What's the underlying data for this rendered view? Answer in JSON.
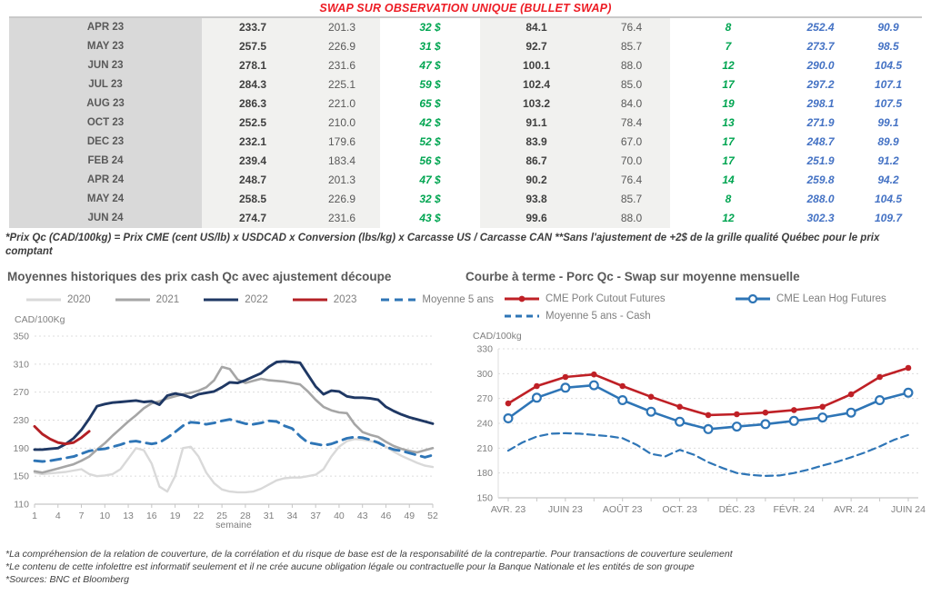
{
  "title": "SWAP SUR OBSERVATION UNIQUE (BULLET SWAP)",
  "table": {
    "rows": [
      [
        "APR 23",
        "233.7",
        "201.3",
        "32 $",
        "84.1",
        "76.4",
        "8",
        "252.4",
        "90.9"
      ],
      [
        "MAY 23",
        "257.5",
        "226.9",
        "31 $",
        "92.7",
        "85.7",
        "7",
        "273.7",
        "98.5"
      ],
      [
        "JUN 23",
        "278.1",
        "231.6",
        "47 $",
        "100.1",
        "88.0",
        "12",
        "290.0",
        "104.5"
      ],
      [
        "JUL 23",
        "284.3",
        "225.1",
        "59 $",
        "102.4",
        "85.0",
        "17",
        "297.2",
        "107.1"
      ],
      [
        "AUG 23",
        "286.3",
        "221.0",
        "65 $",
        "103.2",
        "84.0",
        "19",
        "298.1",
        "107.5"
      ],
      [
        "OCT 23",
        "252.5",
        "210.0",
        "42 $",
        "91.1",
        "78.4",
        "13",
        "271.9",
        "99.1"
      ],
      [
        "DEC 23",
        "232.1",
        "179.6",
        "52 $",
        "83.9",
        "67.0",
        "17",
        "248.7",
        "89.9"
      ],
      [
        "FEB 24",
        "239.4",
        "183.4",
        "56 $",
        "86.7",
        "70.0",
        "17",
        "251.9",
        "91.2"
      ],
      [
        "APR 24",
        "248.7",
        "201.3",
        "47 $",
        "90.2",
        "76.4",
        "14",
        "259.8",
        "94.2"
      ],
      [
        "MAY 24",
        "258.5",
        "226.9",
        "32 $",
        "93.8",
        "85.7",
        "8",
        "288.0",
        "104.5"
      ],
      [
        "JUN 24",
        "274.7",
        "231.6",
        "43 $",
        "99.6",
        "88.0",
        "12",
        "302.3",
        "109.7"
      ]
    ],
    "footnote": "*Prix Qc (CAD/100kg) = Prix CME (cent US/lb) x USDCAD x Conversion (lbs/kg) x Carcasse US / Carcasse CAN **Sans l'ajustement de +2$ de la grille qualité Québec pour le prix comptant"
  },
  "chart_data": [
    {
      "type": "line",
      "title": "Moyennes historiques des prix cash Qc avec ajustement découpe",
      "ylabel": "CAD/100Kg",
      "xlabel": "semaine",
      "ylim": [
        110,
        350
      ],
      "yticks": [
        110,
        150,
        190,
        230,
        270,
        310,
        350
      ],
      "xlim": [
        1,
        52
      ],
      "xticks": [
        {
          "v": 1,
          "label": "1"
        },
        {
          "v": 4,
          "label": "4"
        },
        {
          "v": 7,
          "label": "7"
        },
        {
          "v": 10,
          "label": "10"
        },
        {
          "v": 13,
          "label": "13"
        },
        {
          "v": 16,
          "label": "16"
        },
        {
          "v": 19,
          "label": "19"
        },
        {
          "v": 22,
          "label": "22"
        },
        {
          "v": 25,
          "label": "25"
        },
        {
          "v": 28,
          "label": "28"
        },
        {
          "v": 31,
          "label": "31"
        },
        {
          "v": 34,
          "label": "34"
        },
        {
          "v": 37,
          "label": "37"
        },
        {
          "v": 40,
          "label": "40"
        },
        {
          "v": 43,
          "label": "43"
        },
        {
          "v": 46,
          "label": "46"
        },
        {
          "v": 49,
          "label": "49"
        },
        {
          "v": 52,
          "label": "52"
        }
      ],
      "legend": [
        {
          "label": "2020",
          "color": "#d9d9d9"
        },
        {
          "label": "2021",
          "color": "#a6a6a6"
        },
        {
          "label": "2022",
          "color": "#1f3864"
        },
        {
          "label": "2023",
          "color": "#b42025"
        },
        {
          "label": "Moyenne 5 ans",
          "color": "#2e75b6",
          "dash": "9 6"
        }
      ],
      "series": [
        {
          "name": "2020",
          "color": "#d9d9d9",
          "width": 2.4,
          "x0": 1,
          "dx": 1,
          "values": [
            155,
            153,
            154,
            155,
            156,
            158,
            160,
            153,
            150,
            151,
            153,
            160,
            175,
            190,
            187,
            168,
            135,
            128,
            150,
            190,
            192,
            178,
            155,
            140,
            131,
            128,
            127,
            127,
            128,
            132,
            138,
            144,
            147,
            148,
            148,
            150,
            152,
            160,
            178,
            192,
            200,
            203,
            202,
            200,
            197,
            192,
            185,
            179,
            174,
            169,
            165,
            163
          ]
        },
        {
          "name": "2021",
          "color": "#a6a6a6",
          "width": 2.6,
          "x0": 1,
          "dx": 1,
          "values": [
            157,
            155,
            158,
            161,
            164,
            167,
            172,
            178,
            188,
            197,
            208,
            218,
            228,
            237,
            247,
            254,
            257,
            261,
            264,
            267,
            269,
            272,
            277,
            287,
            306,
            303,
            288,
            283,
            286,
            289,
            287,
            286,
            285,
            283,
            281,
            271,
            259,
            249,
            244,
            241,
            240,
            224,
            213,
            209,
            206,
            199,
            193,
            189,
            186,
            184,
            187,
            190
          ]
        },
        {
          "name": "Moyenne 5 ans",
          "color": "#2e75b6",
          "width": 2.9,
          "dash": "11 7",
          "x0": 1,
          "dx": 1,
          "values": [
            172,
            171,
            172,
            174,
            176,
            178,
            182,
            186,
            188,
            189,
            192,
            195,
            199,
            200,
            198,
            196,
            198,
            205,
            213,
            222,
            227,
            226,
            224,
            226,
            229,
            231,
            228,
            225,
            224,
            226,
            229,
            228,
            222,
            218,
            207,
            198,
            196,
            194,
            196,
            200,
            204,
            206,
            205,
            202,
            198,
            192,
            188,
            186,
            183,
            180,
            177,
            180
          ]
        },
        {
          "name": "2022",
          "color": "#1f3864",
          "width": 2.9,
          "x0": 1,
          "dx": 1,
          "values": [
            188,
            188,
            189,
            190,
            196,
            204,
            216,
            232,
            250,
            253,
            255,
            256,
            257,
            258,
            256,
            257,
            252,
            265,
            268,
            266,
            262,
            267,
            269,
            271,
            277,
            284,
            283,
            287,
            292,
            297,
            306,
            313,
            314,
            313,
            312,
            295,
            278,
            267,
            272,
            271,
            264,
            262,
            262,
            261,
            259,
            249,
            243,
            238,
            234,
            231,
            228,
            225
          ]
        },
        {
          "name": "2023",
          "color": "#b42025",
          "width": 2.9,
          "x0": 1,
          "dx": 1,
          "values": [
            221,
            210,
            203,
            198,
            196,
            198,
            205,
            214
          ]
        }
      ]
    },
    {
      "type": "line",
      "title": "Courbe à terme - Porc Qc - Swap sur moyenne mensuelle",
      "ylabel": "CAD/100kg",
      "xlabel": "",
      "ylim": [
        150,
        330
      ],
      "yticks": [
        150,
        180,
        210,
        240,
        270,
        300,
        330
      ],
      "xlim": [
        -0.35,
        14.35
      ],
      "xticks": [
        {
          "v": 0,
          "label": "AVR. 23"
        },
        {
          "v": 1
        },
        {
          "v": 2,
          "label": "JUIN 23"
        },
        {
          "v": 3
        },
        {
          "v": 4,
          "label": "AOÛT 23"
        },
        {
          "v": 5
        },
        {
          "v": 6,
          "label": "OCT. 23"
        },
        {
          "v": 7
        },
        {
          "v": 8,
          "label": "DÉC. 23"
        },
        {
          "v": 9
        },
        {
          "v": 10,
          "label": "FÉVR. 24"
        },
        {
          "v": 11
        },
        {
          "v": 12,
          "label": "AVR. 24"
        },
        {
          "v": 13
        },
        {
          "v": 14,
          "label": "JUIN 24"
        }
      ],
      "legend_rows": [
        [
          {
            "label": "CME Pork Cutout Futures",
            "color": "#bf2026",
            "marker": "filled"
          },
          {
            "label": "CME Lean Hog Futures",
            "color": "#2e75b6",
            "marker": "open"
          }
        ],
        [
          {
            "label": "Moyenne 5 ans - Cash",
            "color": "#2e75b6",
            "dash": "7 5"
          }
        ]
      ],
      "series": [
        {
          "name": "Moyenne 5 ans - Cash",
          "color": "#2e75b6",
          "width": 2.2,
          "dash": "8 5",
          "x0": 0,
          "dx": 0.5,
          "values": [
            207,
            217,
            224,
            227.5,
            228,
            227.5,
            226,
            224.5,
            222,
            214,
            203,
            200,
            208,
            202,
            193,
            186,
            180,
            177.5,
            176.5,
            177,
            180,
            184,
            189,
            193.5,
            199,
            205,
            212,
            220,
            226
          ]
        },
        {
          "name": "CME Pork Cutout Futures",
          "color": "#bf2026",
          "width": 2.6,
          "marker": "filled",
          "x0": 0,
          "dx": 1,
          "values": [
            264,
            285,
            296,
            299,
            285,
            272,
            260,
            250,
            251,
            253,
            256,
            260,
            275,
            296,
            307
          ]
        },
        {
          "name": "CME Lean Hog Futures",
          "color": "#2e75b6",
          "width": 2.6,
          "marker": "open",
          "x0": 0,
          "dx": 1,
          "values": [
            246,
            271,
            283,
            286,
            268,
            254,
            242,
            233,
            236,
            239,
            243,
            247,
            253,
            268,
            277
          ]
        }
      ]
    }
  ],
  "footer": {
    "lines": [
      "*La compréhension de la relation de couverture, de la corrélation et du risque de base est de la responsabilité de la contrepartie. Pour transactions de couverture seulement",
      "*Le contenu de cette infolettre est informatif seulement et il ne crée aucune obligation légale ou contractuelle pour la Banque Nationale et les entités de son groupe",
      "*Sources: BNC et Bloomberg"
    ]
  }
}
